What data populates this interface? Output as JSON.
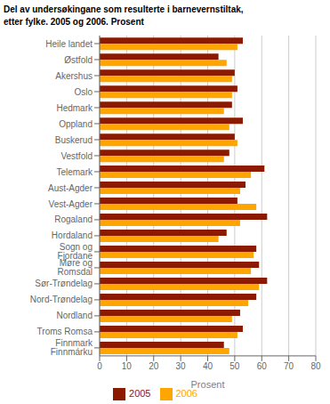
{
  "chart_data": {
    "type": "bar",
    "orientation": "horizontal",
    "title": "Del av undersøkingane som resulterte i barnevernstiltak,",
    "subtitle": "etter fylke. 2005 og 2006. Prosent",
    "categories": [
      "Heile landet",
      "Østfold",
      "Akershus",
      "Oslo",
      "Hedmark",
      "Oppland",
      "Buskerud",
      "Vestfold",
      "Telemark",
      "Aust-Agder",
      "Vest-Agder",
      "Rogaland",
      "Hordaland",
      "Sogn og Fjordane",
      "Møre og Romsdal",
      "Sør-Trøndelag",
      "Nord-Trøndelag",
      "Nordland",
      "Troms Romsa",
      "Finnmark Finnmárku"
    ],
    "series": [
      {
        "name": "2005",
        "color": "#8B1A00",
        "values": [
          53,
          44,
          50,
          51,
          49,
          53,
          50,
          48,
          61,
          54,
          51,
          62,
          47,
          58,
          59,
          62,
          58,
          52,
          53,
          46
        ]
      },
      {
        "name": "2006",
        "color": "#FFA500",
        "values": [
          51,
          47,
          49,
          49,
          46,
          48,
          51,
          46,
          56,
          52,
          58,
          52,
          44,
          57,
          56,
          59,
          55,
          49,
          51,
          48
        ]
      }
    ],
    "xlabel": "Prosent",
    "xlim": [
      0,
      80
    ],
    "xticks": [
      0,
      10,
      20,
      30,
      40,
      50,
      60,
      70,
      80
    ],
    "grid": true,
    "legend": "bottom"
  }
}
